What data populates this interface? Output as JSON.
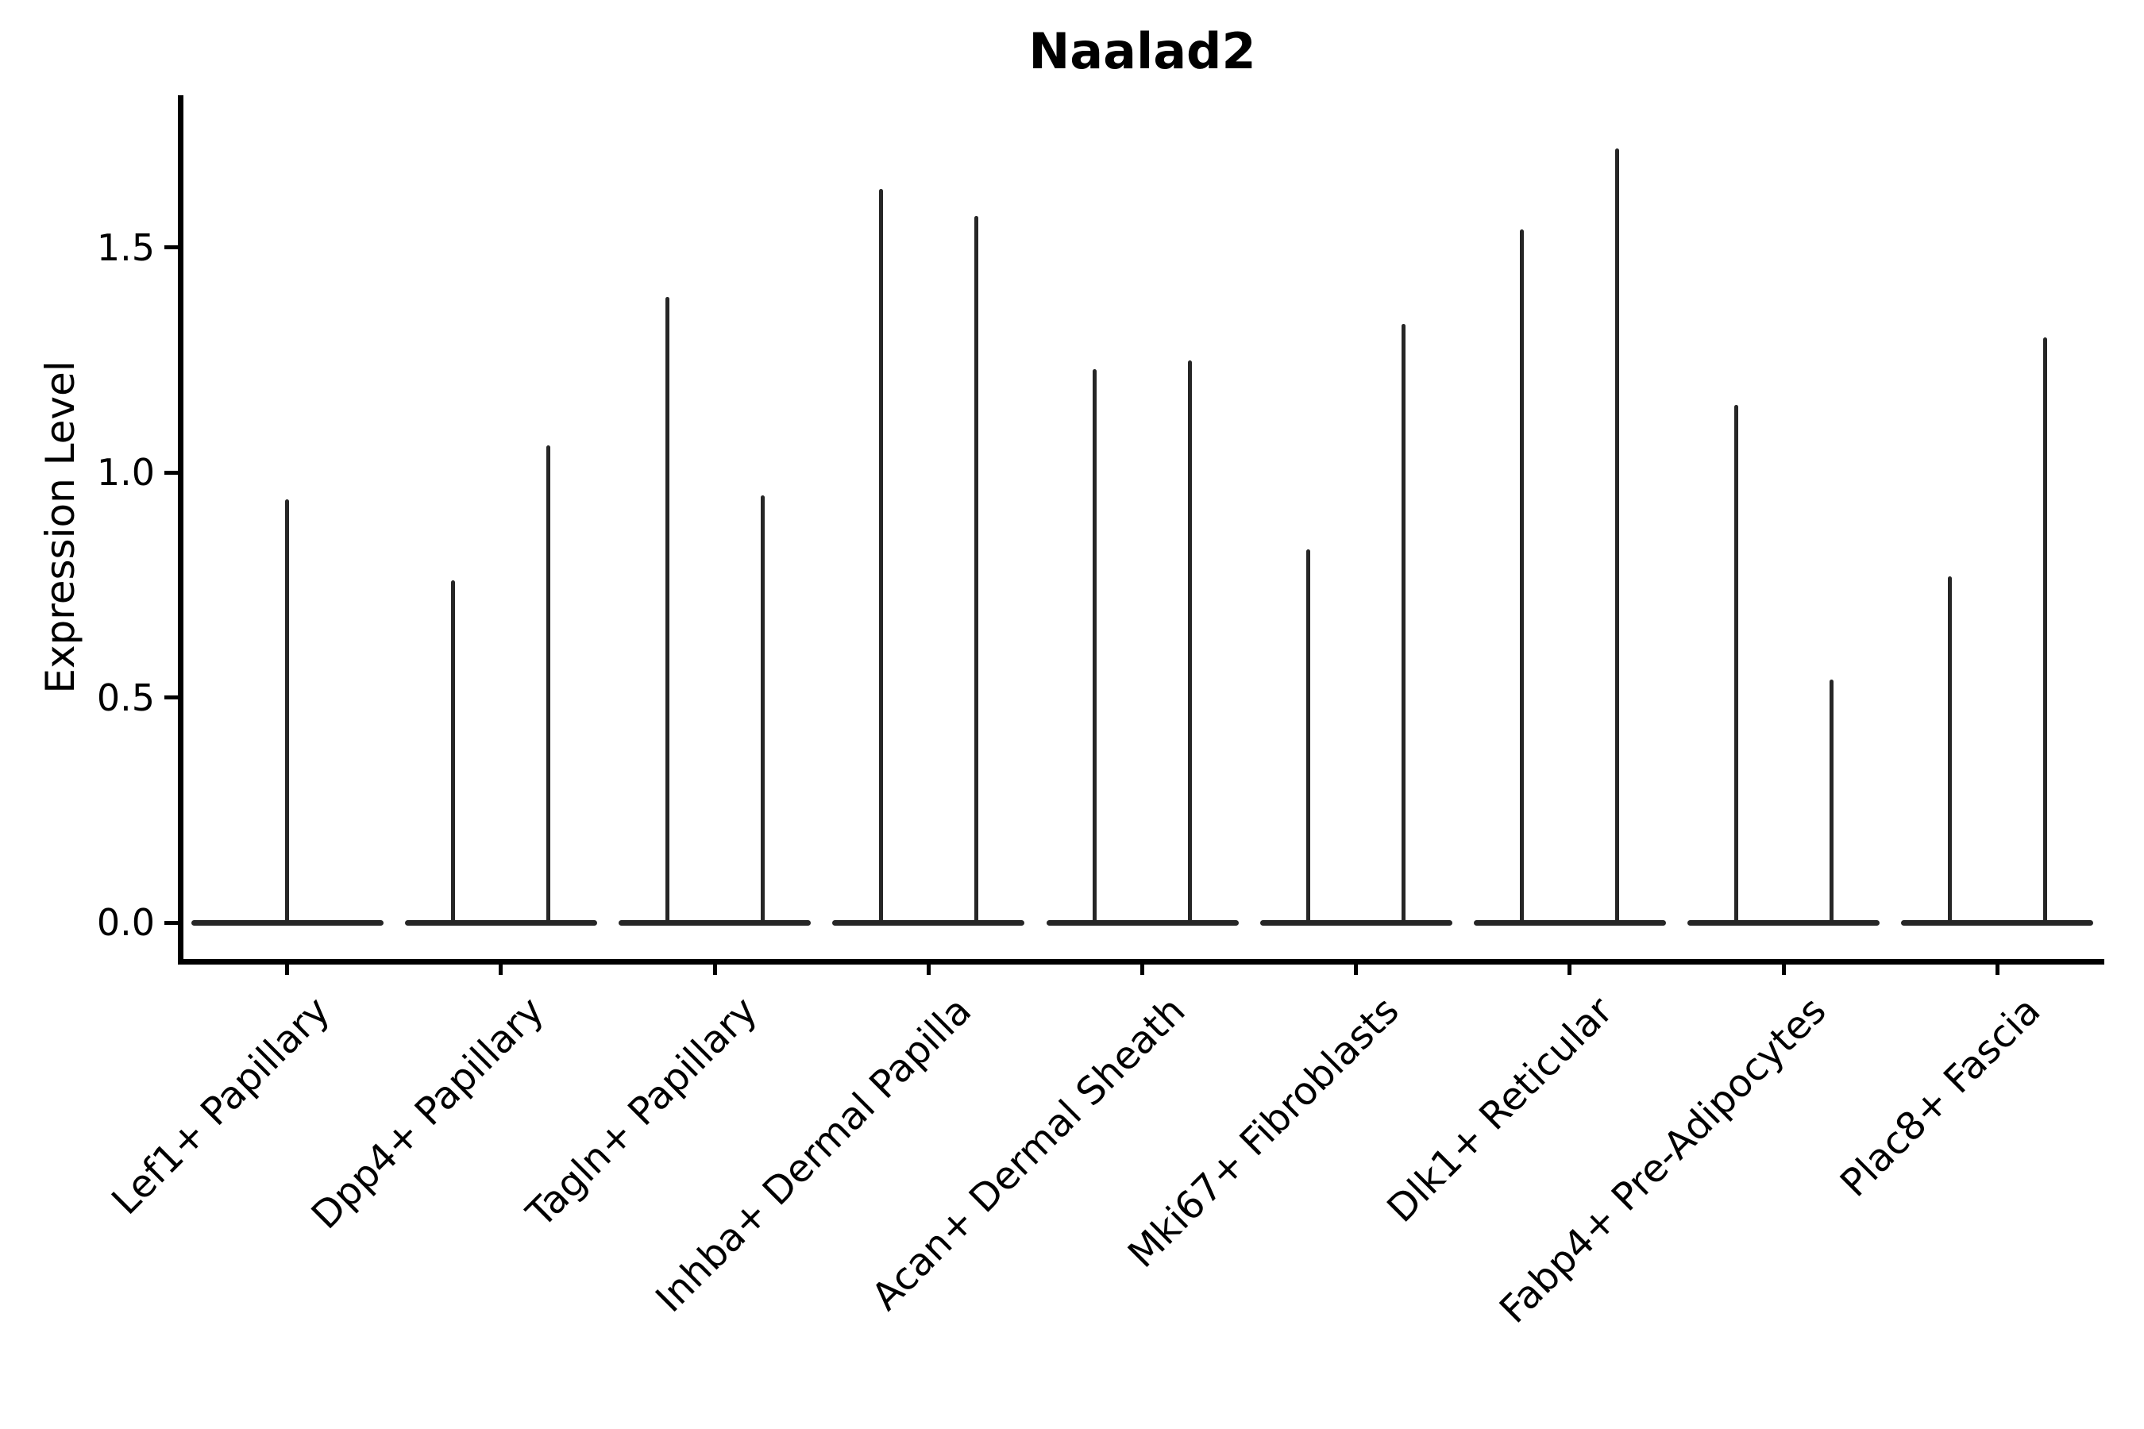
{
  "figure": {
    "title": "Naalad2",
    "background": "#ffffff",
    "axis_color": "#000000",
    "violin_line_color": "#262626"
  },
  "chart_data": {
    "type": "violin",
    "title": "Naalad2",
    "xlabel": "",
    "ylabel": "Expression Level",
    "ylim": [
      -0.08,
      1.84
    ],
    "yticks": [
      {
        "label": "0.0",
        "value": 0.0
      },
      {
        "label": "0.5",
        "value": 0.5
      },
      {
        "label": "1.0",
        "value": 1.0
      },
      {
        "label": "1.5",
        "value": 1.5
      }
    ],
    "grid": false,
    "legend_position": "none",
    "categories": [
      "Lef1+ Papillary",
      "Dpp4+ Papillary",
      "Tagln+ Papillary",
      "Inhba+ Dermal Papilla",
      "Acan+ Dermal Sheath",
      "Mki67+ Fibroblasts",
      "Dlk1+ Reticular",
      "Fabp4+ Pre-Adipocytes",
      "Plac8+ Fascia"
    ],
    "violins": [
      {
        "category": "Lef1+ Papillary",
        "spike_maxima": [
          0.94
        ]
      },
      {
        "category": "Dpp4+ Papillary",
        "spike_maxima": [
          0.76,
          1.06
        ]
      },
      {
        "category": "Tagln+ Papillary",
        "spike_maxima": [
          1.39,
          0.95
        ]
      },
      {
        "category": "Inhba+ Dermal Papilla",
        "spike_maxima": [
          1.63,
          1.57
        ]
      },
      {
        "category": "Acan+ Dermal Sheath",
        "spike_maxima": [
          1.23,
          1.25
        ]
      },
      {
        "category": "Mki67+ Fibroblasts",
        "spike_maxima": [
          0.83,
          1.33
        ]
      },
      {
        "category": "Dlk1+ Reticular",
        "spike_maxima": [
          1.54,
          1.72
        ]
      },
      {
        "category": "Fabp4+ Pre-Adipocytes",
        "spike_maxima": [
          1.15,
          0.54
        ]
      },
      {
        "category": "Plac8+ Fascia",
        "spike_maxima": [
          0.77,
          1.3
        ]
      }
    ],
    "baseline_value": 0.0
  }
}
